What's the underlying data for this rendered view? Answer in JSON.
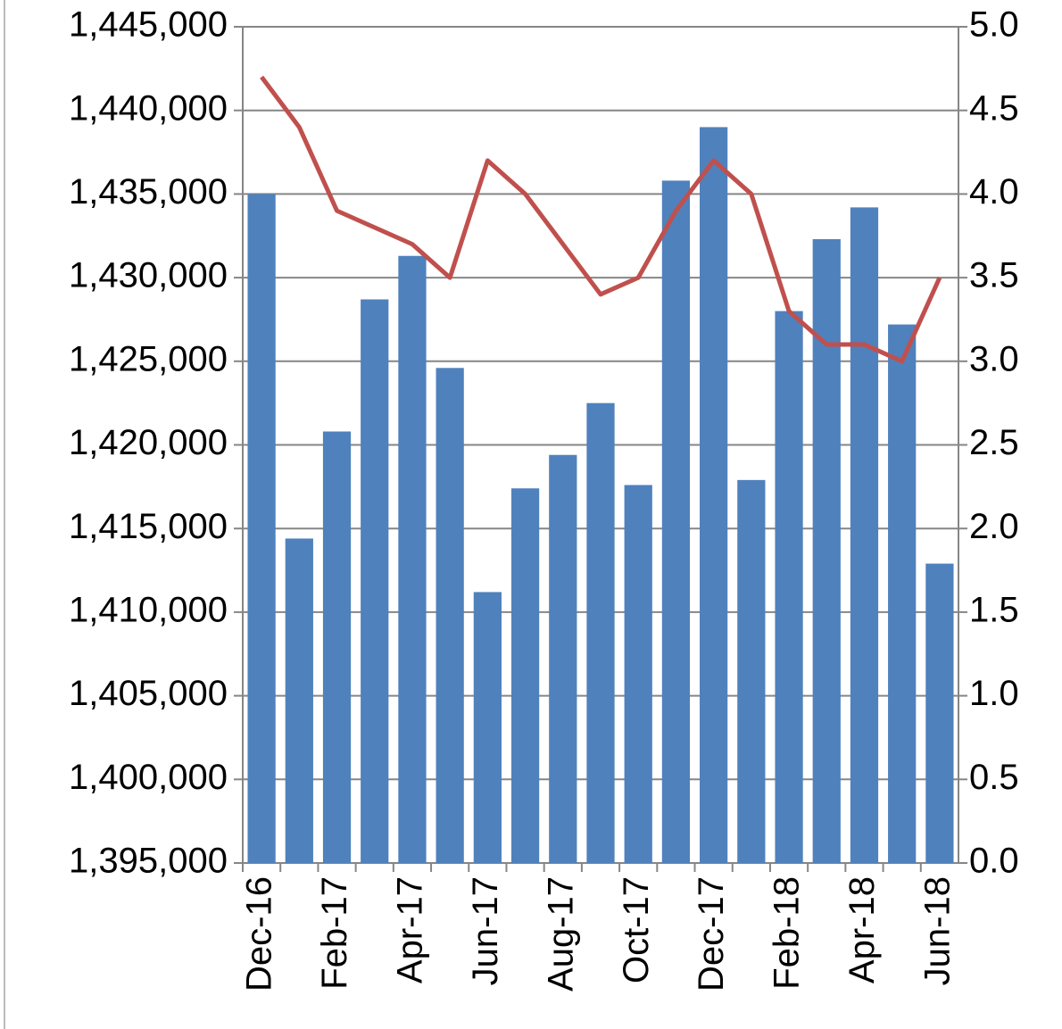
{
  "chart_data": {
    "type": "bar-line",
    "categories": [
      "Dec-16",
      null,
      "Feb-17",
      null,
      "Apr-17",
      null,
      "Jun-17",
      null,
      "Aug-17",
      null,
      "Oct-17",
      null,
      "Dec-17",
      null,
      "Feb-18",
      null,
      "Apr-18",
      null,
      "Jun-18"
    ],
    "series": [
      {
        "type": "bar",
        "color": "#4f81bd",
        "values": [
          1435000,
          1414400,
          1420800,
          1428700,
          1431300,
          1424600,
          1411200,
          1417400,
          1419400,
          1422500,
          1417600,
          1435800,
          1439000,
          1417900,
          1428000,
          1432300,
          1434200,
          1427200,
          1412900
        ]
      },
      {
        "type": "line",
        "axis": "y2",
        "color": "#c0504d",
        "values": [
          4.7,
          4.4,
          3.9,
          3.8,
          3.7,
          3.5,
          4.2,
          4.0,
          3.7,
          3.4,
          3.5,
          3.9,
          4.2,
          4.0,
          3.3,
          3.1,
          3.1,
          3.0,
          3.5
        ]
      }
    ],
    "ylim": [
      1395000,
      1445000
    ],
    "yticks": [
      {
        "value": 1395000,
        "label": "1,395,000"
      },
      {
        "value": 1400000,
        "label": "1,400,000"
      },
      {
        "value": 1405000,
        "label": "1,405,000"
      },
      {
        "value": 1410000,
        "label": "1,410,000"
      },
      {
        "value": 1415000,
        "label": "1,415,000"
      },
      {
        "value": 1420000,
        "label": "1,420,000"
      },
      {
        "value": 1425000,
        "label": "1,425,000"
      },
      {
        "value": 1430000,
        "label": "1,430,000"
      },
      {
        "value": 1435000,
        "label": "1,435,000"
      },
      {
        "value": 1440000,
        "label": "1,440,000"
      },
      {
        "value": 1445000,
        "label": "1,445,000"
      }
    ],
    "y2lim": [
      0,
      5
    ],
    "y2ticks": [
      {
        "value": 0,
        "label": "0.0"
      },
      {
        "value": 0.5,
        "label": "0.5"
      },
      {
        "value": 1,
        "label": "1.0"
      },
      {
        "value": 1.5,
        "label": "1.5"
      },
      {
        "value": 2,
        "label": "2.0"
      },
      {
        "value": 2.5,
        "label": "2.5"
      },
      {
        "value": 3,
        "label": "3.0"
      },
      {
        "value": 3.5,
        "label": "3.5"
      },
      {
        "value": 4,
        "label": "4.0"
      },
      {
        "value": 4.5,
        "label": "4.5"
      },
      {
        "value": 5,
        "label": "5.0"
      }
    ],
    "grid": true
  }
}
